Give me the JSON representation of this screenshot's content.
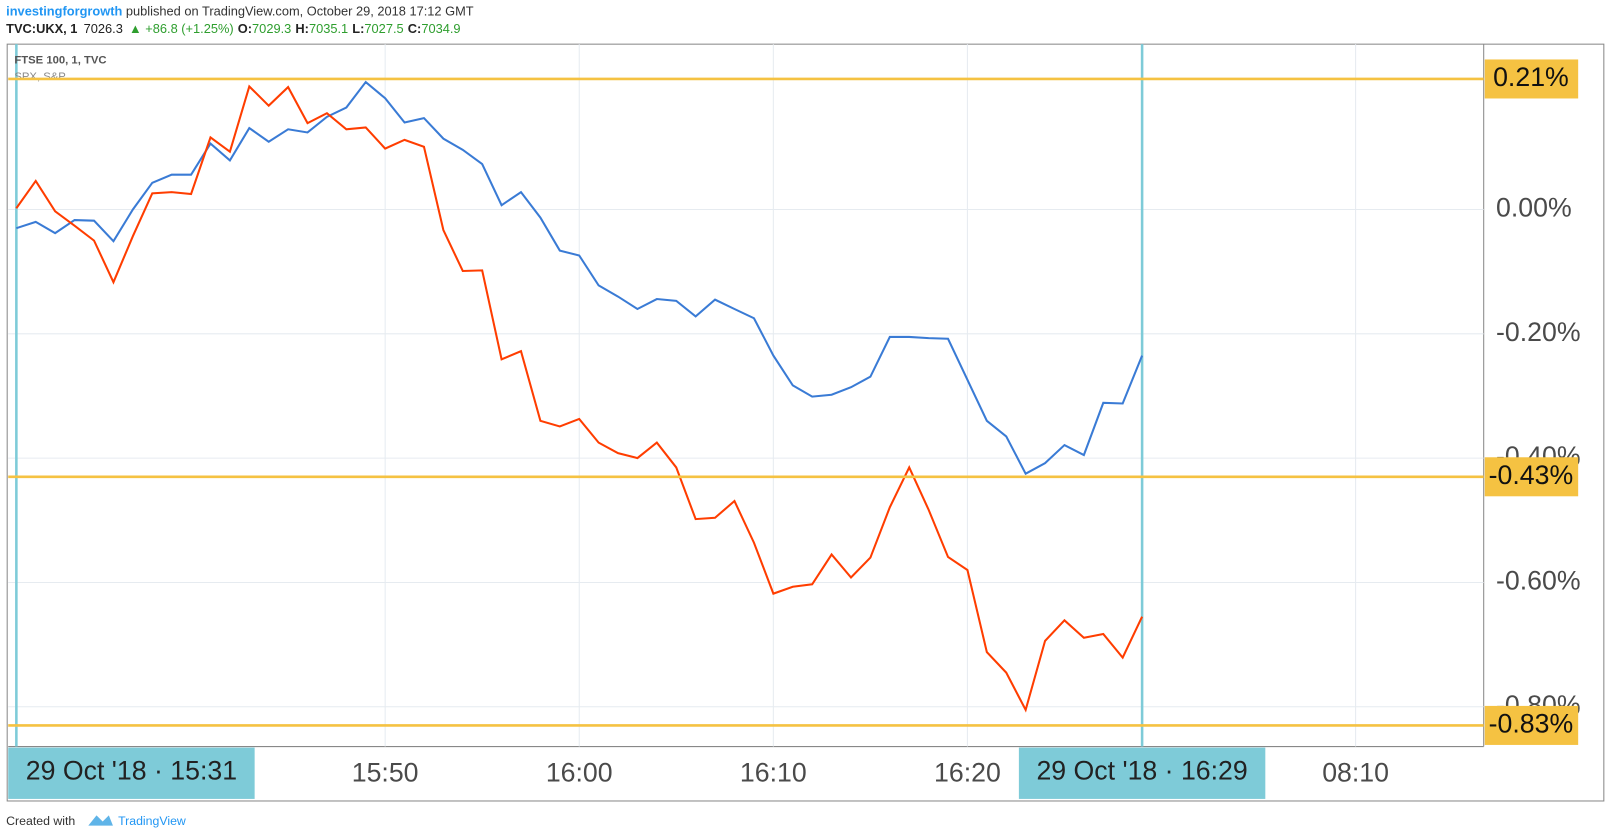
{
  "header": {
    "author": "investingforgrowth",
    "published": " published on TradingView.com, October 29, 2018 17:12 GMT",
    "symbol": "TVC:UKX, 1",
    "last": "7026.3",
    "change": "▲ +86.8 (+1.25%)",
    "o_label": "O:",
    "o": "7029.3",
    "h_label": "H:",
    "h": "7035.1",
    "l_label": "L:",
    "l": "7027.5",
    "c_label": "C:",
    "c": "7034.9"
  },
  "footer": {
    "created": "Created with",
    "brand": "TradingView"
  },
  "chart_data": {
    "type": "line",
    "categories": [
      "15:31",
      "15:32",
      "15:33",
      "15:34",
      "15:35",
      "15:36",
      "15:37",
      "15:38",
      "15:39",
      "15:40",
      "15:41",
      "15:42",
      "15:43",
      "15:44",
      "15:45",
      "15:46",
      "15:47",
      "15:48",
      "15:49",
      "15:50",
      "15:51",
      "15:52",
      "15:53",
      "15:54",
      "15:55",
      "15:56",
      "15:57",
      "15:58",
      "15:59",
      "16:00",
      "16:01",
      "16:02",
      "16:03",
      "16:04",
      "16:05",
      "16:06",
      "16:07",
      "16:08",
      "16:09",
      "16:10",
      "16:11",
      "16:12",
      "16:13",
      "16:14",
      "16:15",
      "16:16",
      "16:17",
      "16:18",
      "16:19",
      "16:20",
      "16:21",
      "16:22",
      "16:23",
      "16:24",
      "16:25",
      "16:26",
      "16:27",
      "16:28",
      "16:29"
    ],
    "series": [
      {
        "name": "FTSE 100, 1, TVC",
        "color": "#3a7bd5",
        "values": [
          -0.03,
          -0.02,
          -0.038,
          -0.017,
          -0.018,
          -0.051,
          0,
          0.043,
          0.056,
          0.056,
          0.106,
          0.079,
          0.131,
          0.109,
          0.129,
          0.124,
          0.149,
          0.164,
          0.205,
          0.179,
          0.14,
          0.147,
          0.114,
          0.096,
          0.073,
          0.007,
          0.028,
          -0.013,
          -0.066,
          -0.074,
          -0.122,
          -0.14,
          -0.16,
          -0.144,
          -0.147,
          -0.172,
          -0.145,
          -0.16,
          -0.175,
          -0.235,
          -0.283,
          -0.301,
          -0.298,
          -0.286,
          -0.269,
          -0.205,
          -0.205,
          -0.207,
          -0.208,
          -0.274,
          -0.34,
          -0.365,
          -0.425,
          -0.408,
          -0.379,
          -0.395,
          -0.311,
          -0.312,
          -0.235
        ]
      },
      {
        "name": "SPX, S&P",
        "color": "#ff3d00",
        "values": [
          0.002,
          0.046,
          -0.003,
          -0.026,
          -0.05,
          -0.117,
          -0.043,
          0.026,
          0.028,
          0.025,
          0.116,
          0.093,
          0.198,
          0.167,
          0.197,
          0.139,
          0.155,
          0.129,
          0.132,
          0.098,
          0.112,
          0.101,
          -0.033,
          -0.099,
          -0.098,
          -0.241,
          -0.228,
          -0.34,
          -0.349,
          -0.337,
          -0.375,
          -0.392,
          -0.4,
          -0.375,
          -0.415,
          -0.498,
          -0.496,
          -0.469,
          -0.536,
          -0.618,
          -0.607,
          -0.603,
          -0.555,
          -0.592,
          -0.56,
          -0.479,
          -0.415,
          -0.483,
          -0.559,
          -0.58,
          -0.712,
          -0.745,
          -0.805,
          -0.694,
          -0.661,
          -0.689,
          -0.683,
          -0.721,
          -0.655
        ]
      }
    ],
    "xlim": [
      -0.42,
      75.6
    ],
    "xticks": [
      {
        "value": 19,
        "label": "15:50"
      },
      {
        "value": 29,
        "label": "16:00"
      },
      {
        "value": 39,
        "label": "16:10"
      },
      {
        "value": 49,
        "label": "16:20"
      },
      {
        "value": 69,
        "label": "08:10"
      }
    ],
    "ylim": [
      -0.864,
      0.266
    ],
    "yticks": [
      {
        "value": 0,
        "label": "0.00%"
      },
      {
        "value": -0.2,
        "label": "-0.20%"
      },
      {
        "value": -0.4,
        "label": "-0.40%"
      },
      {
        "value": -0.6,
        "label": "-0.60%"
      },
      {
        "value": -0.8,
        "label": "-0.80%"
      }
    ],
    "grid": true,
    "levels": [
      {
        "value": 0.21,
        "label": "0.21%"
      },
      {
        "value": -0.43,
        "label": "-0.43%"
      },
      {
        "value": -0.83,
        "label": "-0.83%"
      }
    ],
    "level_color": "#f5c242",
    "range_labels": [
      "29 Oct '18 · 15:31",
      "29 Oct '18 · 16:29"
    ],
    "range_color": "#7ecbd8"
  }
}
